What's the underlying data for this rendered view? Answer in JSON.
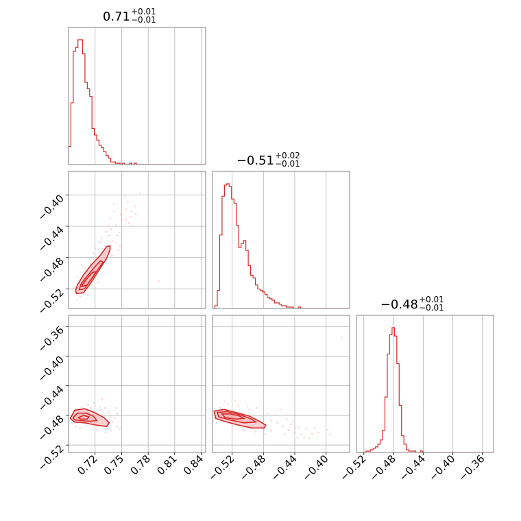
{
  "chart_data": {
    "type": "corner",
    "colors": {
      "line": "#d62728",
      "fill": "#f4a7a8",
      "grid": "#b0b0b0",
      "frame": "#808080"
    },
    "grid": true,
    "params": [
      {
        "title_median": "0.71",
        "title_plus": "+0.01",
        "title_minus": "−0.01",
        "range": [
          0.69,
          0.845
        ],
        "ticks": [
          {
            "v": 0.72,
            "label": "0.72"
          },
          {
            "v": 0.75,
            "label": "0.75"
          },
          {
            "v": 0.78,
            "label": "0.78"
          },
          {
            "v": 0.81,
            "label": "0.81"
          },
          {
            "v": 0.84,
            "label": "0.84"
          }
        ]
      },
      {
        "title_median": "−0.51",
        "title_plus": "+0.02",
        "title_minus": "−0.01",
        "range": [
          -0.545,
          -0.37
        ],
        "ticks": [
          {
            "v": -0.52,
            "label": "−0.52"
          },
          {
            "v": -0.48,
            "label": "−0.48"
          },
          {
            "v": -0.44,
            "label": "−0.44"
          },
          {
            "v": -0.4,
            "label": "−0.40"
          }
        ]
      },
      {
        "title_median": "−0.48",
        "title_plus": "+0.01",
        "title_minus": "−0.01",
        "range": [
          -0.53,
          -0.345
        ],
        "ticks": [
          {
            "v": -0.52,
            "label": "−0.52"
          },
          {
            "v": -0.48,
            "label": "−0.48"
          },
          {
            "v": -0.44,
            "label": "−0.44"
          },
          {
            "v": -0.4,
            "label": "−0.40"
          },
          {
            "v": -0.36,
            "label": "−0.36"
          }
        ]
      }
    ],
    "histograms": [
      {
        "param": 0,
        "bin_start": 0.69,
        "bin_width": 0.00265,
        "counts": [
          14,
          48,
          88,
          91,
          97,
          97,
          86,
          64,
          59,
          53,
          28,
          23,
          19,
          15,
          13,
          10,
          7,
          5,
          2,
          2,
          1,
          1,
          0,
          1,
          0,
          0,
          1,
          0,
          1,
          0,
          0,
          0,
          0,
          0,
          0,
          0,
          0,
          0,
          0,
          0,
          0,
          0,
          0,
          0,
          0,
          0,
          0,
          0,
          0,
          0,
          0,
          0,
          0,
          0,
          0,
          0,
          0,
          0
        ]
      },
      {
        "param": 1,
        "bin_start": -0.545,
        "bin_width": 0.00304,
        "counts": [
          0,
          2,
          13,
          53,
          81,
          89,
          90,
          88,
          79,
          76,
          60,
          44,
          47,
          49,
          42,
          31,
          24,
          22,
          17,
          14,
          13,
          12,
          10,
          8,
          7,
          6,
          4,
          4,
          3,
          2,
          2,
          1,
          1,
          1,
          0,
          0,
          1,
          0,
          0,
          0,
          0,
          0,
          0,
          0,
          0,
          0,
          0,
          0,
          0,
          0,
          0,
          0,
          0,
          0,
          0,
          0,
          0,
          0
        ]
      },
      {
        "param": 2,
        "bin_start": -0.53,
        "bin_width": 0.0032,
        "counts": [
          0,
          0,
          0,
          0,
          1,
          1,
          2,
          3,
          4,
          6,
          9,
          16,
          40,
          71,
          85,
          90,
          84,
          64,
          34,
          12,
          6,
          2,
          1,
          1,
          1,
          0,
          0,
          1,
          0,
          0,
          0,
          0,
          0,
          0,
          0,
          0,
          0,
          0,
          0,
          0,
          0,
          0,
          0,
          0,
          0,
          0,
          0,
          0,
          0,
          0,
          0,
          0,
          0,
          0,
          0,
          0,
          0,
          0
        ]
      }
    ],
    "pairs": [
      {
        "x_param": 0,
        "y_param": 1,
        "contours": [
          [
            [
              0.699,
              -0.526
            ],
            [
              0.707,
              -0.525
            ],
            [
              0.716,
              -0.511
            ],
            [
              0.725,
              -0.495
            ],
            [
              0.733,
              -0.481
            ],
            [
              0.737,
              -0.47
            ],
            [
              0.737,
              -0.465
            ],
            [
              0.733,
              -0.466
            ],
            [
              0.726,
              -0.477
            ],
            [
              0.716,
              -0.489
            ],
            [
              0.707,
              -0.502
            ],
            [
              0.7,
              -0.515
            ],
            [
              0.698,
              -0.522
            ]
          ],
          [
            [
              0.702,
              -0.521
            ],
            [
              0.708,
              -0.52
            ],
            [
              0.716,
              -0.507
            ],
            [
              0.724,
              -0.494
            ],
            [
              0.729,
              -0.486
            ],
            [
              0.726,
              -0.484
            ],
            [
              0.718,
              -0.494
            ],
            [
              0.71,
              -0.505
            ],
            [
              0.704,
              -0.514
            ]
          ],
          [
            [
              0.705,
              -0.517
            ],
            [
              0.711,
              -0.515
            ],
            [
              0.718,
              -0.504
            ],
            [
              0.721,
              -0.498
            ],
            [
              0.717,
              -0.499
            ],
            [
              0.71,
              -0.508
            ],
            [
              0.706,
              -0.514
            ]
          ]
        ],
        "scatter": [
          [
            0.74,
            -0.459
          ],
          [
            0.745,
            -0.452
          ],
          [
            0.738,
            -0.444
          ],
          [
            0.751,
            -0.431
          ],
          [
            0.742,
            -0.421
          ],
          [
            0.755,
            -0.418
          ],
          [
            0.76,
            -0.428
          ],
          [
            0.735,
            -0.44
          ],
          [
            0.748,
            -0.465
          ],
          [
            0.728,
            -0.455
          ],
          [
            0.72,
            -0.468
          ],
          [
            0.712,
            -0.48
          ],
          [
            0.705,
            -0.49
          ],
          [
            0.7,
            -0.505
          ],
          [
            0.73,
            -0.472
          ],
          [
            0.744,
            -0.438
          ],
          [
            0.752,
            -0.445
          ],
          [
            0.757,
            -0.409
          ],
          [
            0.765,
            -0.415
          ],
          [
            0.771,
            -0.398
          ],
          [
            0.737,
            -0.43
          ],
          [
            0.733,
            -0.447
          ],
          [
            0.726,
            -0.46
          ],
          [
            0.718,
            -0.475
          ],
          [
            0.71,
            -0.497
          ],
          [
            0.696,
            -0.519
          ],
          [
            0.703,
            -0.53
          ],
          [
            0.712,
            -0.528
          ],
          [
            0.724,
            -0.512
          ],
          [
            0.739,
            -0.477
          ],
          [
            0.746,
            -0.47
          ],
          [
            0.758,
            -0.436
          ],
          [
            0.762,
            -0.44
          ],
          [
            0.749,
            -0.425
          ],
          [
            0.741,
            -0.412
          ],
          [
            0.792,
            -0.51
          ],
          [
            0.754,
            -0.402
          ],
          [
            0.732,
            -0.484
          ],
          [
            0.716,
            -0.515
          ],
          [
            0.7,
            -0.534
          ],
          [
            0.747,
            -0.448
          ],
          [
            0.736,
            -0.452
          ],
          [
            0.761,
            -0.421
          ],
          [
            0.728,
            -0.469
          ],
          [
            0.722,
            -0.482
          ],
          [
            0.744,
            -0.461
          ],
          [
            0.755,
            -0.432
          ],
          [
            0.766,
            -0.425
          ],
          [
            0.715,
            -0.488
          ],
          [
            0.708,
            -0.509
          ]
        ]
      },
      {
        "x_param": 0,
        "y_param": 2,
        "contours": [
          [
            [
              0.692,
              -0.484
            ],
            [
              0.697,
              -0.473
            ],
            [
              0.708,
              -0.471
            ],
            [
              0.719,
              -0.476
            ],
            [
              0.73,
              -0.483
            ],
            [
              0.736,
              -0.49
            ],
            [
              0.733,
              -0.495
            ],
            [
              0.721,
              -0.493
            ],
            [
              0.708,
              -0.49
            ],
            [
              0.697,
              -0.489
            ]
          ],
          [
            [
              0.695,
              -0.483
            ],
            [
              0.7,
              -0.477
            ],
            [
              0.71,
              -0.477
            ],
            [
              0.718,
              -0.481
            ],
            [
              0.722,
              -0.487
            ],
            [
              0.714,
              -0.488
            ],
            [
              0.703,
              -0.487
            ],
            [
              0.697,
              -0.486
            ]
          ],
          [
            [
              0.701,
              -0.483
            ],
            [
              0.707,
              -0.48
            ],
            [
              0.713,
              -0.482
            ],
            [
              0.711,
              -0.485
            ],
            [
              0.704,
              -0.485
            ]
          ]
        ],
        "scatter": [
          [
            0.718,
            -0.463
          ],
          [
            0.725,
            -0.468
          ],
          [
            0.735,
            -0.476
          ],
          [
            0.74,
            -0.489
          ],
          [
            0.745,
            -0.495
          ],
          [
            0.738,
            -0.5
          ],
          [
            0.742,
            -0.484
          ],
          [
            0.731,
            -0.47
          ],
          [
            0.712,
            -0.466
          ],
          [
            0.705,
            -0.469
          ],
          [
            0.698,
            -0.495
          ],
          [
            0.722,
            -0.499
          ],
          [
            0.745,
            -0.478
          ],
          [
            0.732,
            -0.503
          ],
          [
            0.75,
            -0.49
          ],
          [
            0.728,
            -0.458
          ],
          [
            0.715,
            -0.47
          ],
          [
            0.703,
            -0.497
          ],
          [
            0.693,
            -0.49
          ],
          [
            0.737,
            -0.481
          ],
          [
            0.748,
            -0.498
          ],
          [
            0.726,
            -0.473
          ],
          [
            0.709,
            -0.494
          ],
          [
            0.744,
            -0.47
          ],
          [
            0.734,
            -0.491
          ]
        ]
      },
      {
        "x_param": 1,
        "y_param": 2,
        "contours": [
          [
            [
              -0.543,
              -0.474
            ],
            [
              -0.53,
              -0.472
            ],
            [
              -0.515,
              -0.476
            ],
            [
              -0.498,
              -0.481
            ],
            [
              -0.485,
              -0.488
            ],
            [
              -0.477,
              -0.493
            ],
            [
              -0.479,
              -0.497
            ],
            [
              -0.495,
              -0.497
            ],
            [
              -0.512,
              -0.493
            ],
            [
              -0.53,
              -0.488
            ],
            [
              -0.541,
              -0.484
            ]
          ],
          [
            [
              -0.539,
              -0.476
            ],
            [
              -0.526,
              -0.475
            ],
            [
              -0.51,
              -0.479
            ],
            [
              -0.495,
              -0.485
            ],
            [
              -0.49,
              -0.489
            ],
            [
              -0.505,
              -0.49
            ],
            [
              -0.524,
              -0.486
            ],
            [
              -0.537,
              -0.482
            ]
          ],
          [
            [
              -0.533,
              -0.478
            ],
            [
              -0.522,
              -0.478
            ],
            [
              -0.51,
              -0.481
            ],
            [
              -0.505,
              -0.484
            ],
            [
              -0.515,
              -0.485
            ],
            [
              -0.529,
              -0.483
            ]
          ]
        ],
        "scatter": [
          [
            -0.47,
            -0.487
          ],
          [
            -0.462,
            -0.49
          ],
          [
            -0.455,
            -0.495
          ],
          [
            -0.448,
            -0.5
          ],
          [
            -0.44,
            -0.503
          ],
          [
            -0.432,
            -0.506
          ],
          [
            -0.425,
            -0.498
          ],
          [
            -0.418,
            -0.505
          ],
          [
            -0.465,
            -0.48
          ],
          [
            -0.475,
            -0.478
          ],
          [
            -0.488,
            -0.47
          ],
          [
            -0.5,
            -0.468
          ],
          [
            -0.512,
            -0.467
          ],
          [
            -0.525,
            -0.465
          ],
          [
            -0.535,
            -0.47
          ],
          [
            -0.545,
            -0.467
          ],
          [
            -0.54,
            -0.49
          ],
          [
            -0.52,
            -0.495
          ],
          [
            -0.505,
            -0.5
          ],
          [
            -0.49,
            -0.502
          ],
          [
            -0.478,
            -0.505
          ],
          [
            -0.45,
            -0.485
          ],
          [
            -0.445,
            -0.492
          ],
          [
            -0.435,
            -0.496
          ],
          [
            -0.428,
            -0.51
          ],
          [
            -0.415,
            -0.497
          ],
          [
            -0.41,
            -0.503
          ],
          [
            -0.398,
            -0.5
          ],
          [
            -0.395,
            -0.506
          ],
          [
            -0.38,
            -0.375
          ],
          [
            -0.458,
            -0.472
          ],
          [
            -0.47,
            -0.5
          ],
          [
            -0.482,
            -0.496
          ],
          [
            -0.498,
            -0.472
          ],
          [
            -0.53,
            -0.461
          ],
          [
            -0.516,
            -0.461
          ],
          [
            -0.452,
            -0.506
          ],
          [
            -0.442,
            -0.488
          ],
          [
            -0.437,
            -0.509
          ],
          [
            -0.421,
            -0.511
          ]
        ]
      }
    ]
  }
}
